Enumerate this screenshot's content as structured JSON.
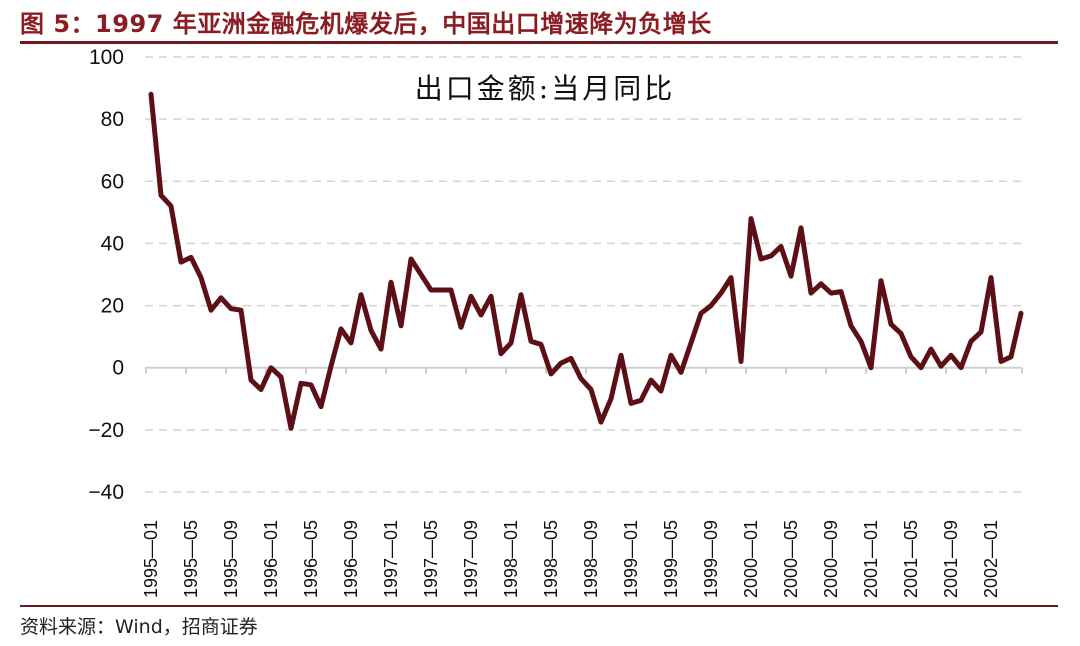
{
  "figure": {
    "title": "图 5：1997 年亚洲金融危机爆发后，中国出口增速降为负增长",
    "source": "资料来源：Wind，招商证券",
    "colors": {
      "title": "#8a1c22",
      "rule": "#6b1a1f",
      "line": "#5c0f14",
      "grid": "#d4d4d4",
      "axis": "#cfcfcf"
    }
  },
  "chart_data": {
    "type": "line",
    "title": "出口金额:当月同比",
    "xlabel": "",
    "ylabel": "",
    "ylim": [
      -40,
      100
    ],
    "yticks": [
      100,
      80,
      60,
      40,
      20,
      0,
      -20,
      -40
    ],
    "grid": "horizontal dashed",
    "legend": "none",
    "x_tick_labels": [
      "1995-01",
      "1995-05",
      "1995-09",
      "1996-01",
      "1996-05",
      "1996-09",
      "1997-01",
      "1997-05",
      "1997-09",
      "1998-01",
      "1998-05",
      "1998-09",
      "1999-01",
      "1999-05",
      "1999-09",
      "2000-01",
      "2000-05",
      "2000-09",
      "2001-01",
      "2001-05",
      "2001-09",
      "2002-01"
    ],
    "x": [
      "1995-01",
      "1995-02",
      "1995-03",
      "1995-04",
      "1995-05",
      "1995-06",
      "1995-07",
      "1995-08",
      "1995-09",
      "1995-10",
      "1995-11",
      "1995-12",
      "1996-01",
      "1996-02",
      "1996-03",
      "1996-04",
      "1996-05",
      "1996-06",
      "1996-07",
      "1996-08",
      "1996-09",
      "1996-10",
      "1996-11",
      "1996-12",
      "1997-01",
      "1997-02",
      "1997-03",
      "1997-04",
      "1997-05",
      "1997-06",
      "1997-07",
      "1997-08",
      "1997-09",
      "1997-10",
      "1997-11",
      "1997-12",
      "1998-01",
      "1998-02",
      "1998-03",
      "1998-04",
      "1998-05",
      "1998-06",
      "1998-07",
      "1998-08",
      "1998-09",
      "1998-10",
      "1998-11",
      "1998-12",
      "1999-01",
      "1999-02",
      "1999-03",
      "1999-04",
      "1999-05",
      "1999-06",
      "1999-07",
      "1999-08",
      "1999-09",
      "1999-10",
      "1999-11",
      "1999-12",
      "2000-01",
      "2000-02",
      "2000-03",
      "2000-04",
      "2000-05",
      "2000-06",
      "2000-07",
      "2000-08",
      "2000-09",
      "2000-10",
      "2000-11",
      "2000-12",
      "2001-01",
      "2001-02",
      "2001-03",
      "2001-04",
      "2001-05",
      "2001-06",
      "2001-07",
      "2001-08",
      "2001-09",
      "2001-10",
      "2001-11",
      "2001-12",
      "2002-01",
      "2002-02",
      "2002-03",
      "2002-04"
    ],
    "series": [
      {
        "name": "出口金额:当月同比",
        "color": "#5c0f14",
        "values": [
          88,
          55.5,
          52,
          34,
          35.5,
          29,
          18.5,
          22.5,
          19,
          18.5,
          -4,
          -7,
          0,
          -3,
          -19.5,
          -5,
          -5.5,
          -12.5,
          0.5,
          12.5,
          8,
          23.5,
          12,
          6,
          27.5,
          13.5,
          35,
          30,
          25,
          25,
          25,
          13,
          23,
          17,
          23,
          4.5,
          8,
          23.5,
          8.5,
          7.5,
          -2,
          1.5,
          3,
          -3.5,
          -7,
          -17.5,
          -10,
          4,
          -11.5,
          -10.5,
          -4,
          -7.5,
          4,
          -1.5,
          8,
          17.5,
          20,
          24,
          29,
          2,
          48,
          35,
          36,
          39,
          29.5,
          45,
          24,
          27,
          24,
          24.5,
          13.5,
          8.5,
          0,
          28,
          14,
          11,
          3.5,
          0,
          6,
          0.5,
          4,
          0,
          8.5,
          11.5,
          29,
          2,
          3.5,
          17.5
        ]
      }
    ]
  }
}
